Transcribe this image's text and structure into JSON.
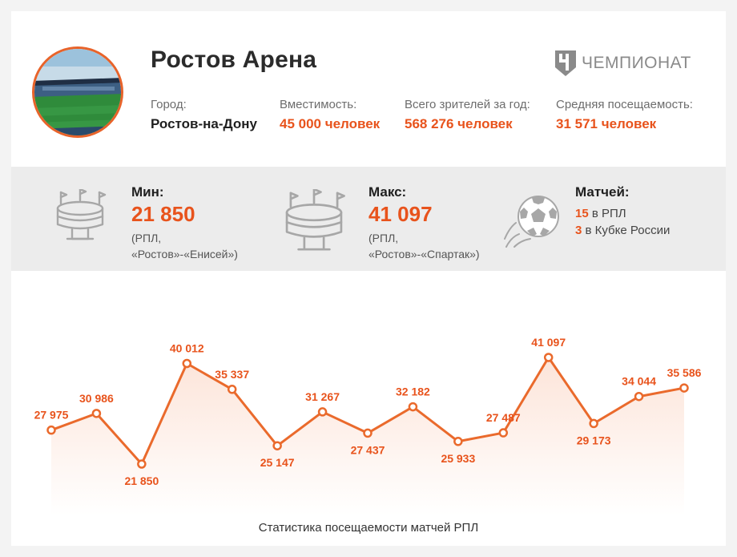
{
  "header": {
    "title": "Ростов Арена",
    "brand": "ЧЕМПИОНАТ",
    "city_label": "Город:",
    "city_value": "Ростов-на-Дону",
    "capacity_label": "Вместимость:",
    "capacity_value": "45 000 человек",
    "total_label": "Всего зрителей за год:",
    "total_value": "568 276 человек",
    "avg_label": "Средняя посещаемость:",
    "avg_value": "31 571 человек"
  },
  "stats": {
    "min_label": "Мин:",
    "min_value": "21 850",
    "min_note1": "(РПЛ,",
    "min_note2": "«Ростов»-«Енисей»)",
    "max_label": "Макс:",
    "max_value": "41 097",
    "max_note1": "(РПЛ,",
    "max_note2": "«Ростов»-«Спартак»)",
    "matches_label": "Матчей:",
    "rpl_count": "15",
    "rpl_text": " в РПЛ",
    "cup_count": "3",
    "cup_text": " в Кубке России"
  },
  "colors": {
    "accent": "#e8531c",
    "line": "#ea6a2c",
    "stats_bg": "#ececec"
  },
  "icons": [
    "stadium-photo",
    "championat-logo-icon",
    "stadium-icon",
    "stadium-icon",
    "football-icon"
  ],
  "chart_data": {
    "type": "line",
    "values": [
      27975,
      30986,
      21850,
      40012,
      35337,
      25147,
      31267,
      27437,
      32182,
      25933,
      27487,
      41097,
      29173,
      34044,
      35586
    ],
    "labels": [
      "27 975",
      "30 986",
      "21 850",
      "40 012",
      "35 337",
      "25 147",
      "31 267",
      "27 437",
      "32 182",
      "25 933",
      "27 487",
      "41 097",
      "29 173",
      "34 044",
      "35 586"
    ],
    "caption": "Статистика посещаемости матчей РПЛ"
  }
}
